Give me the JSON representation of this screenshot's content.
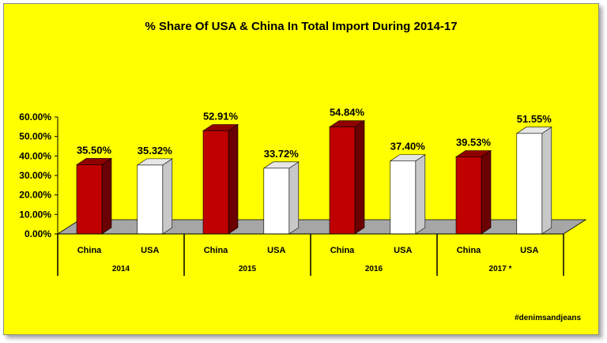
{
  "colors": {
    "background": "#ffff00",
    "china_front": "#c00000",
    "china_side": "#6b0000",
    "china_top": "#8f0000",
    "usa_front": "#ffffff",
    "usa_side": "#c8c8c8",
    "usa_top": "#e6e6e6",
    "floor": "#a6a6a6"
  },
  "watermark": "#denimsandjeans",
  "chart_data": {
    "type": "bar",
    "title": "% Share Of USA & China In Total Import During 2014-17",
    "ylim": [
      0,
      60
    ],
    "y_ticks": [
      "0.00%",
      "10.00%",
      "20.00%",
      "30.00%",
      "40.00%",
      "50.00%",
      "60.00%"
    ],
    "groups": [
      "2014",
      "2015",
      "2016",
      "2017 *"
    ],
    "categories": [
      "China",
      "USA",
      "China",
      "USA",
      "China",
      "USA",
      "China",
      "USA"
    ],
    "series": [
      {
        "values": [
          35.5,
          35.32,
          52.91,
          33.72,
          54.84,
          37.4,
          39.53,
          51.55
        ],
        "labels": [
          "35.50%",
          "35.32%",
          "52.91%",
          "33.72%",
          "54.84%",
          "37.40%",
          "39.53%",
          "51.55%"
        ]
      }
    ],
    "grid": false,
    "legend": "none",
    "style": "3d-column"
  }
}
